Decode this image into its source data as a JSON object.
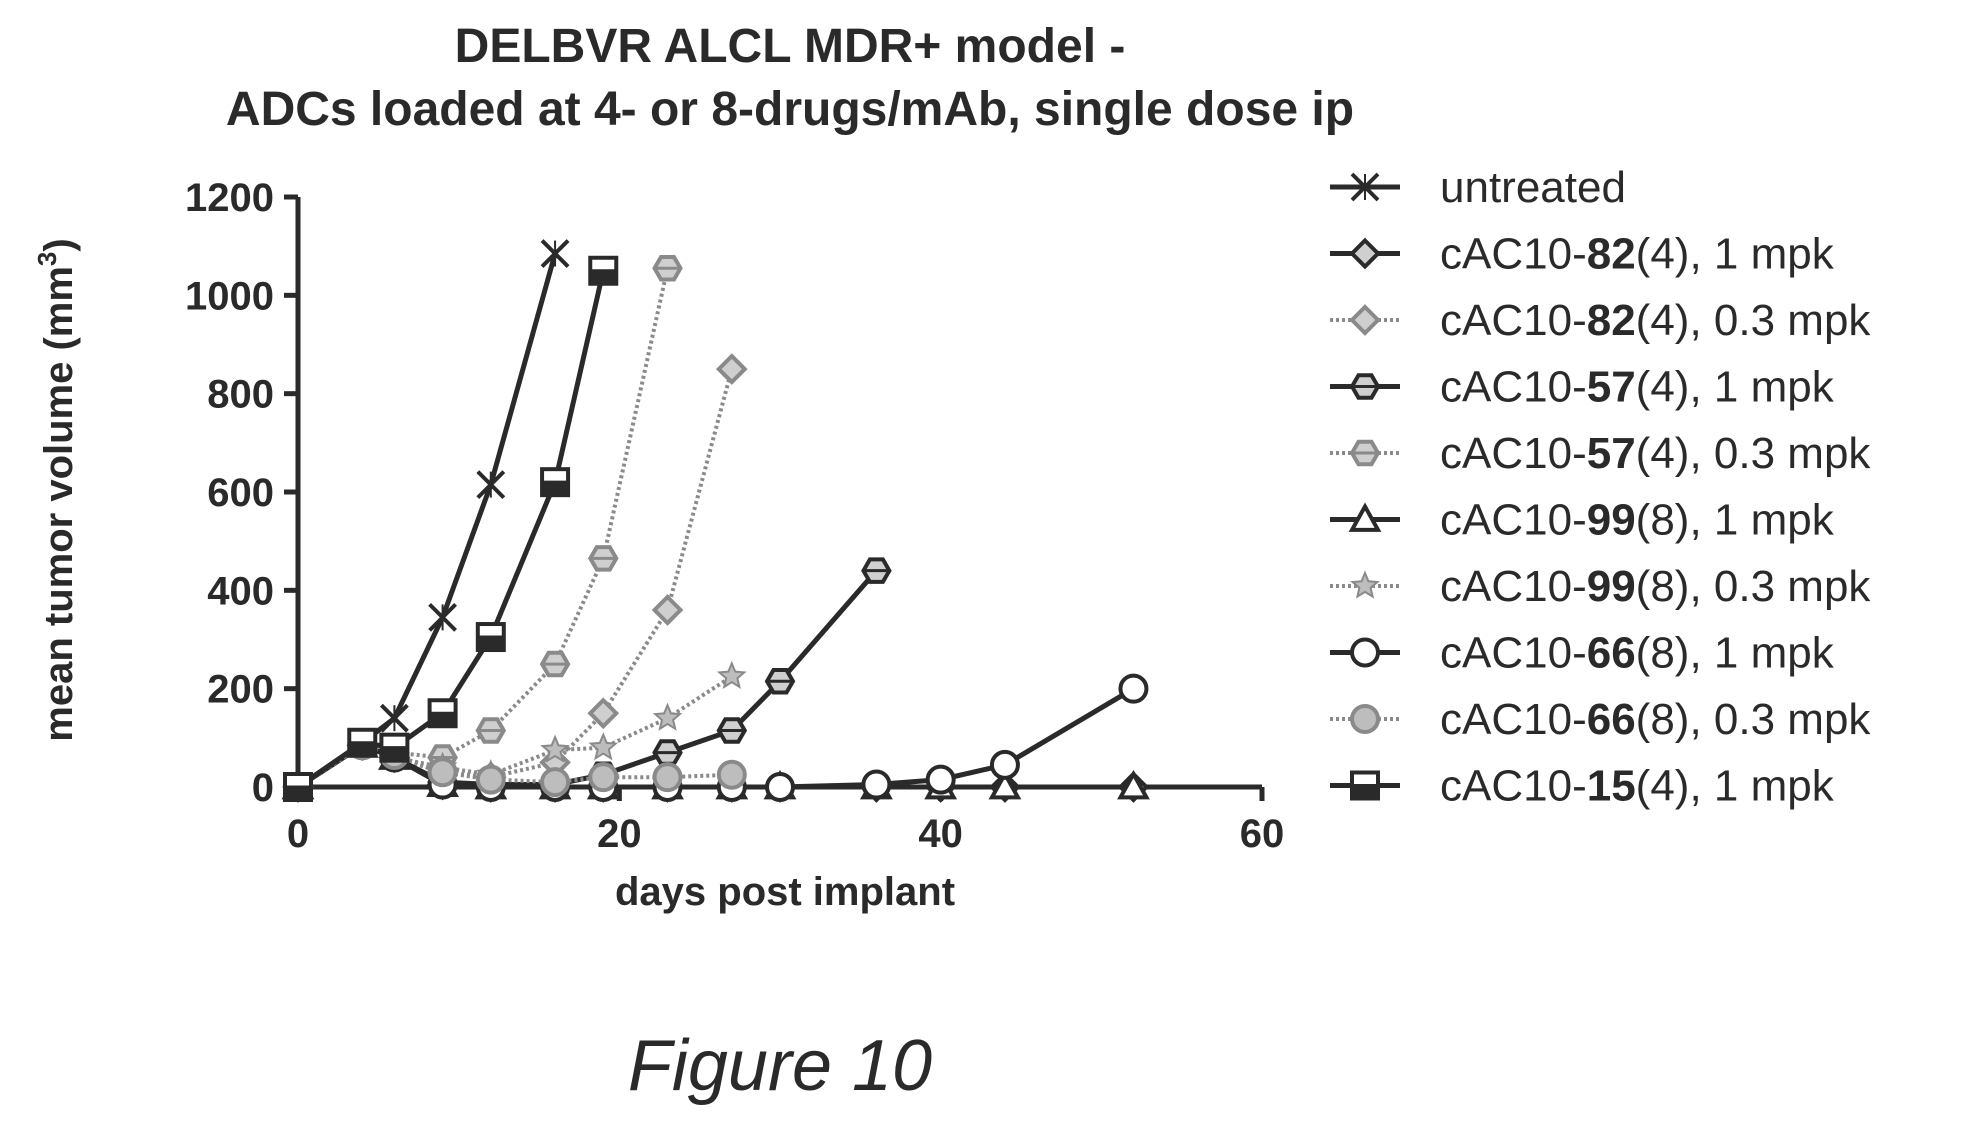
{
  "chart_data": {
    "type": "line",
    "title_lines": [
      "DELBVR ALCL MDR+ model -",
      "ADCs loaded at 4- or 8-drugs/mAb, single dose ip"
    ],
    "xlabel": "days post implant",
    "ylabel_main": "mean tumor volume (mm",
    "ylabel_sup": "3",
    "ylabel_end": ")",
    "xlim": [
      0,
      60
    ],
    "ylim": [
      0,
      1200
    ],
    "xticks": [
      0,
      20,
      40,
      60
    ],
    "yticks": [
      0,
      200,
      400,
      600,
      800,
      1000,
      1200
    ],
    "grid": false,
    "legend_position": "right",
    "series": [
      {
        "name": "untreated",
        "label_prefix": "untreated",
        "label_bold": "",
        "label_suffix": "",
        "marker": "x",
        "style": "solid",
        "color": "#2a2a2a",
        "x": [
          0,
          4,
          6,
          9,
          12,
          16
        ],
        "y": [
          0,
          90,
          140,
          345,
          615,
          1085
        ]
      },
      {
        "name": "cAC10-82(4), 1 mpk",
        "label_prefix": "cAC10-",
        "label_bold": "82",
        "label_suffix": "(4), 1 mpk",
        "marker": "diamond",
        "style": "solid",
        "color": "#2a2a2a",
        "x": [
          0,
          4,
          6,
          9,
          12,
          16,
          19,
          23,
          27,
          30,
          36,
          40,
          44,
          52
        ],
        "y": [
          0,
          85,
          60,
          5,
          0,
          0,
          0,
          0,
          0,
          0,
          0,
          0,
          0,
          0
        ]
      },
      {
        "name": "cAC10-82(4), 0.3 mpk",
        "label_prefix": "cAC10-",
        "label_bold": "82",
        "label_suffix": "(4), 0.3 mpk",
        "marker": "diamond",
        "style": "dotted",
        "color": "#8a8a8a",
        "x": [
          0,
          4,
          6,
          9,
          12,
          16,
          19,
          23,
          27
        ],
        "y": [
          0,
          85,
          60,
          30,
          20,
          50,
          150,
          360,
          850
        ]
      },
      {
        "name": "cAC10-57(4), 1 mpk",
        "label_prefix": "cAC10-",
        "label_bold": "57",
        "label_suffix": "(4), 1 mpk",
        "marker": "hexagon",
        "style": "solid",
        "color": "#2a2a2a",
        "x": [
          0,
          4,
          6,
          9,
          12,
          16,
          19,
          23,
          27,
          30,
          36
        ],
        "y": [
          0,
          85,
          60,
          10,
          5,
          5,
          25,
          70,
          115,
          215,
          440
        ]
      },
      {
        "name": "cAC10-57(4), 0.3 mpk",
        "label_prefix": "cAC10-",
        "label_bold": "57",
        "label_suffix": "(4), 0.3 mpk",
        "marker": "hexagon",
        "style": "dotted",
        "color": "#8a8a8a",
        "x": [
          0,
          4,
          6,
          9,
          12,
          16,
          19,
          23
        ],
        "y": [
          0,
          85,
          70,
          60,
          115,
          250,
          465,
          1055
        ]
      },
      {
        "name": "cAC10-99(8), 1 mpk",
        "label_prefix": "cAC10-",
        "label_bold": "99",
        "label_suffix": "(8), 1 mpk",
        "marker": "triangle",
        "style": "solid",
        "color": "#2a2a2a",
        "x": [
          0,
          4,
          6,
          9,
          12,
          16,
          19,
          23,
          27,
          30,
          36,
          40,
          44,
          52
        ],
        "y": [
          0,
          85,
          60,
          5,
          0,
          0,
          0,
          0,
          0,
          0,
          0,
          0,
          0,
          0
        ]
      },
      {
        "name": "cAC10-99(8), 0.3 mpk",
        "label_prefix": "cAC10-",
        "label_bold": "99",
        "label_suffix": "(8), 0.3 mpk",
        "marker": "star",
        "style": "dotted",
        "color": "#8a8a8a",
        "x": [
          0,
          4,
          6,
          9,
          12,
          16,
          19,
          23,
          27
        ],
        "y": [
          0,
          85,
          60,
          40,
          25,
          75,
          80,
          140,
          225
        ]
      },
      {
        "name": "cAC10-66(8), 1 mpk",
        "label_prefix": "cAC10-",
        "label_bold": "66",
        "label_suffix": "(8), 1 mpk",
        "marker": "circle",
        "style": "solid",
        "color": "#2a2a2a",
        "x": [
          0,
          4,
          6,
          9,
          12,
          16,
          19,
          23,
          27,
          30,
          36,
          40,
          44,
          52
        ],
        "y": [
          0,
          85,
          60,
          5,
          0,
          0,
          0,
          0,
          0,
          0,
          5,
          15,
          45,
          200
        ]
      },
      {
        "name": "cAC10-66(8), 0.3 mpk",
        "label_prefix": "cAC10-",
        "label_bold": "66",
        "label_suffix": "(8), 0.3 mpk",
        "marker": "circle-filled",
        "style": "dotted",
        "color": "#8a8a8a",
        "x": [
          0,
          4,
          6,
          9,
          12,
          16,
          19,
          23,
          27
        ],
        "y": [
          0,
          85,
          65,
          30,
          15,
          10,
          20,
          20,
          25
        ]
      },
      {
        "name": "cAC10-15(4), 1 mpk",
        "label_prefix": "cAC10-",
        "label_bold": "15",
        "label_suffix": "(4), 1 mpk",
        "marker": "square",
        "style": "solid",
        "color": "#2a2a2a",
        "x": [
          0,
          4,
          6,
          9,
          12,
          16,
          19
        ],
        "y": [
          0,
          90,
          80,
          150,
          305,
          620,
          1050
        ]
      }
    ]
  },
  "caption": "Figure 10"
}
